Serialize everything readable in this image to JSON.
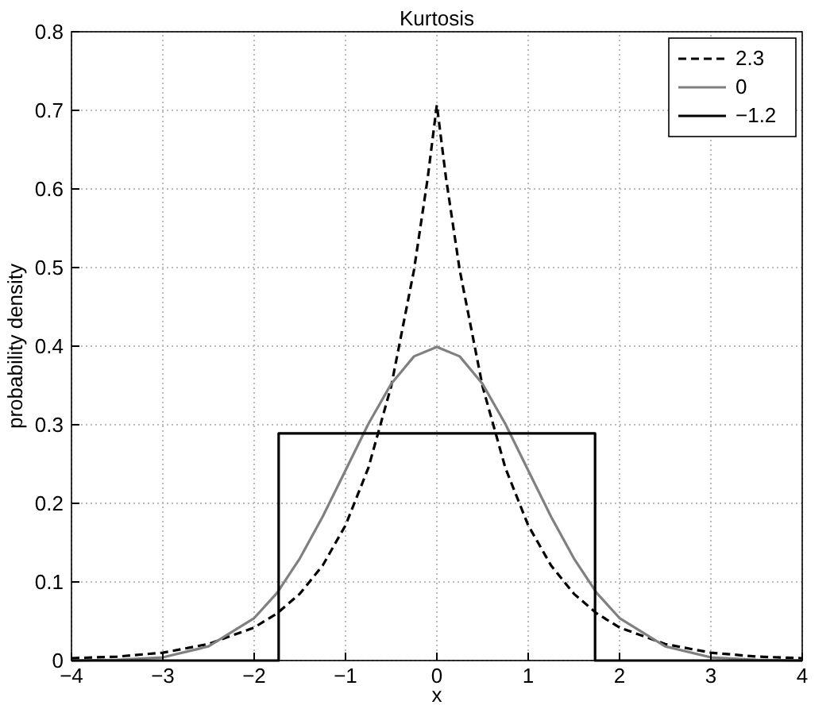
{
  "chart_data": {
    "type": "line",
    "title": "Kurtosis",
    "xlabel": "x",
    "ylabel": "probability density",
    "xlim": [
      -4,
      4
    ],
    "xticks": [
      {
        "value": -4,
        "label": "−4"
      },
      {
        "value": -3,
        "label": "−3"
      },
      {
        "value": -2,
        "label": "−2"
      },
      {
        "value": -1,
        "label": "−1"
      },
      0,
      1,
      2,
      3,
      4
    ],
    "ylim": [
      0,
      0.8
    ],
    "yticks": [
      0,
      0.1,
      0.2,
      0.3,
      0.4,
      0.5,
      0.6,
      0.7,
      0.8
    ],
    "grid": true,
    "legend": "top right",
    "series": [
      {
        "name": "2.3",
        "color": "#000000",
        "line_style": "dashed",
        "x": [
          -4,
          -3.5,
          -3,
          -2.5,
          -2,
          -1.75,
          -1.5,
          -1.25,
          -1,
          -0.75,
          -0.5,
          -0.25,
          -0.1,
          0,
          0.1,
          0.25,
          0.5,
          0.75,
          1,
          1.25,
          1.5,
          1.75,
          2,
          2.5,
          3,
          3.5,
          4
        ],
        "values": [
          0.003,
          0.005,
          0.01,
          0.021,
          0.042,
          0.06,
          0.085,
          0.121,
          0.172,
          0.245,
          0.349,
          0.497,
          0.614,
          0.707,
          0.614,
          0.497,
          0.349,
          0.245,
          0.172,
          0.121,
          0.085,
          0.06,
          0.042,
          0.021,
          0.01,
          0.005,
          0.003
        ]
      },
      {
        "name": "0",
        "color": "#808080",
        "line_style": "solid",
        "x": [
          -4,
          -3.5,
          -3,
          -2.5,
          -2,
          -1.75,
          -1.5,
          -1.25,
          -1,
          -0.75,
          -0.5,
          -0.25,
          0,
          0.25,
          0.5,
          0.75,
          1,
          1.25,
          1.5,
          1.75,
          2,
          2.5,
          3,
          3.5,
          4
        ],
        "values": [
          0,
          0.001,
          0.004,
          0.018,
          0.054,
          0.086,
          0.13,
          0.183,
          0.242,
          0.301,
          0.352,
          0.387,
          0.399,
          0.387,
          0.352,
          0.301,
          0.242,
          0.183,
          0.13,
          0.086,
          0.054,
          0.018,
          0.004,
          0.001,
          0
        ]
      },
      {
        "name": "−1.2",
        "color": "#000000",
        "line_style": "solid",
        "x": [
          -4,
          -1.732,
          -1.732,
          1.732,
          1.732,
          4
        ],
        "values": [
          0,
          0,
          0.289,
          0.289,
          0,
          0
        ]
      }
    ]
  }
}
